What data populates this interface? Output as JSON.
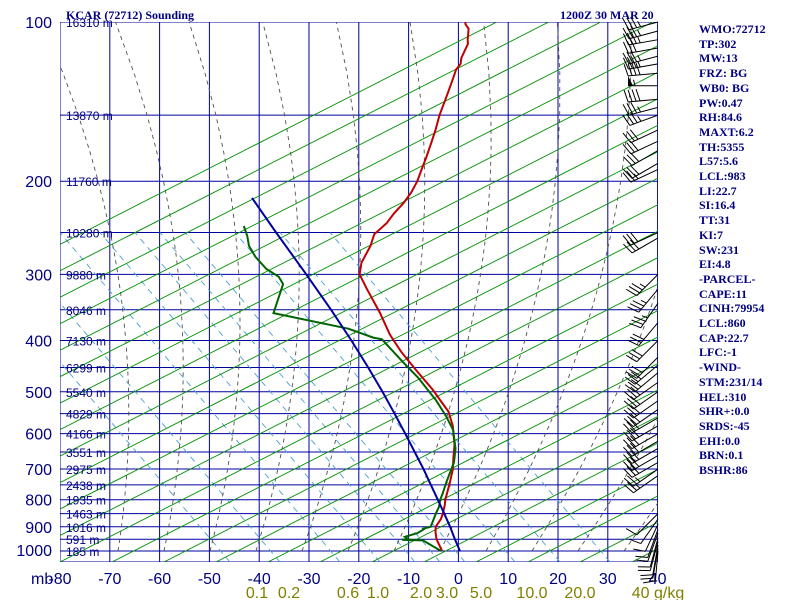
{
  "chart_data": {
    "type": "line",
    "title": "KCAR (72712) Sounding",
    "subtitle": "1200Z 30 MAR 20",
    "xlabel": "",
    "ylabel": "mb",
    "xlim": [
      -80,
      0
    ],
    "ylim": [
      1000,
      100
    ],
    "y_scale": "log",
    "grid": true,
    "pressure_ticks": [
      100,
      200,
      300,
      400,
      500,
      600,
      700,
      800,
      900,
      1000
    ],
    "temp_ticks": [
      -80,
      -70,
      -60,
      -50,
      -40,
      -30,
      -20,
      -10,
      0,
      10,
      20,
      30,
      40
    ],
    "height_labels": [
      {
        "p": 100,
        "label": "16310 m"
      },
      {
        "p": 150,
        "label": "13870 m"
      },
      {
        "p": 200,
        "label": "11760 m"
      },
      {
        "p": 250,
        "label": "10280 m"
      },
      {
        "p": 300,
        "label": "9880 m"
      },
      {
        "p": 350,
        "label": "8046 m"
      },
      {
        "p": 400,
        "label": "7130 m"
      },
      {
        "p": 450,
        "label": "6299 m"
      },
      {
        "p": 500,
        "label": "5540 m"
      },
      {
        "p": 550,
        "label": "4829 m"
      },
      {
        "p": 600,
        "label": "4166 m"
      },
      {
        "p": 650,
        "label": "3551 m"
      },
      {
        "p": 700,
        "label": "2975 m"
      },
      {
        "p": 750,
        "label": "2438 m"
      },
      {
        "p": 800,
        "label": "1935 m"
      },
      {
        "p": 850,
        "label": "1463 m"
      },
      {
        "p": 900,
        "label": "1016 m"
      },
      {
        "p": 950,
        "label": "591 m"
      },
      {
        "p": 1000,
        "label": "185 m"
      }
    ],
    "mixing_ratio_labels": [
      "0.1",
      "0.2",
      "0.6",
      "1.0",
      "2.0",
      "3.0",
      "5.0",
      "10.0",
      "20.0",
      "40 g/kg"
    ],
    "series": [
      {
        "name": "Temperature",
        "color": "#c00000",
        "points": [
          [
            -3.6,
            1000
          ],
          [
            -6,
            950
          ],
          [
            -7,
            920
          ],
          [
            -7.5,
            900
          ],
          [
            -7.3,
            870
          ],
          [
            -7.5,
            850
          ],
          [
            -8,
            820
          ],
          [
            -8.5,
            800
          ],
          [
            -9.3,
            750
          ],
          [
            -10.3,
            700
          ],
          [
            -11.3,
            670
          ],
          [
            -12.6,
            630
          ],
          [
            -15,
            580
          ],
          [
            -17.4,
            545
          ],
          [
            -19.6,
            525
          ],
          [
            -23,
            495
          ],
          [
            -28.4,
            455
          ],
          [
            -33.4,
            420
          ],
          [
            -37.5,
            390
          ],
          [
            -41.8,
            355
          ],
          [
            -47,
            320
          ],
          [
            -50.1,
            300
          ],
          [
            -51,
            285
          ],
          [
            -51,
            265
          ],
          [
            -51.5,
            252
          ],
          [
            -50.2,
            240
          ],
          [
            -49.8,
            230
          ],
          [
            -49,
            220
          ],
          [
            -48.6,
            210
          ],
          [
            -48.6,
            200
          ],
          [
            -49,
            190
          ],
          [
            -49.4,
            180
          ],
          [
            -49.9,
            170
          ],
          [
            -50.5,
            160
          ],
          [
            -51.3,
            150
          ],
          [
            -51.8,
            140
          ],
          [
            -52.4,
            130
          ],
          [
            -52.9,
            123
          ],
          [
            -52.6,
            120
          ],
          [
            -53.1,
            117
          ],
          [
            -53.3,
            110
          ],
          [
            -53.8,
            108
          ],
          [
            -54.8,
            103
          ],
          [
            -55.9,
            101
          ],
          [
            -56.2,
            100
          ]
        ]
      },
      {
        "name": "Dewpoint",
        "color": "#006400",
        "points": [
          [
            -3.8,
            1000
          ],
          [
            -8.6,
            955
          ],
          [
            -12.8,
            953
          ],
          [
            -11.8,
            948
          ],
          [
            -12.6,
            940
          ],
          [
            -10.5,
            925
          ],
          [
            -9.6,
            910
          ],
          [
            -9.8,
            907
          ],
          [
            -8.5,
            900
          ],
          [
            -8.9,
            850
          ],
          [
            -9,
            825
          ],
          [
            -9.5,
            800
          ],
          [
            -9.7,
            780
          ],
          [
            -10.2,
            740
          ],
          [
            -10.8,
            680
          ],
          [
            -12,
            640
          ],
          [
            -14.5,
            590
          ],
          [
            -17.5,
            555
          ],
          [
            -21,
            520
          ],
          [
            -27.2,
            470
          ],
          [
            -31.8,
            440
          ],
          [
            -38.6,
            398
          ],
          [
            -40.5,
            395
          ],
          [
            -46.5,
            380
          ],
          [
            -63.2,
            355
          ],
          [
            -64.4,
            313
          ],
          [
            -66.1,
            303
          ],
          [
            -69.4,
            293
          ],
          [
            -72.9,
            278
          ],
          [
            -75.4,
            265
          ],
          [
            -76.8,
            254
          ],
          [
            -78.6,
            243
          ]
        ]
      },
      {
        "name": "Parcel",
        "color": "#0000a0",
        "points": [
          [
            0,
            1000
          ],
          [
            -2.3,
            950
          ],
          [
            -4.6,
            900
          ],
          [
            -7.2,
            850
          ],
          [
            -10,
            800
          ],
          [
            -13,
            750
          ],
          [
            -16.2,
            700
          ],
          [
            -19.8,
            650
          ],
          [
            -23.7,
            600
          ],
          [
            -28,
            550
          ],
          [
            -32.8,
            500
          ],
          [
            -38.3,
            450
          ],
          [
            -44.6,
            400
          ],
          [
            -52,
            350
          ],
          [
            -60.8,
            300
          ],
          [
            -71.4,
            250
          ],
          [
            -80,
            215
          ]
        ]
      }
    ],
    "wind_barbs": [
      {
        "p": 100,
        "dir": 255,
        "spd": 35
      },
      {
        "p": 104,
        "dir": 255,
        "spd": 35
      },
      {
        "p": 108,
        "dir": 260,
        "spd": 35
      },
      {
        "p": 112,
        "dir": 260,
        "spd": 30
      },
      {
        "p": 116,
        "dir": 255,
        "spd": 35
      },
      {
        "p": 120,
        "dir": 260,
        "spd": 35
      },
      {
        "p": 125,
        "dir": 265,
        "spd": 40
      },
      {
        "p": 132,
        "dir": 270,
        "spd": 55
      },
      {
        "p": 140,
        "dir": 265,
        "spd": 40
      },
      {
        "p": 145,
        "dir": 255,
        "spd": 35
      },
      {
        "p": 150,
        "dir": 250,
        "spd": 35
      },
      {
        "p": 160,
        "dir": 245,
        "spd": 30
      },
      {
        "p": 168,
        "dir": 245,
        "spd": 30
      },
      {
        "p": 175,
        "dir": 240,
        "spd": 30
      },
      {
        "p": 185,
        "dir": 240,
        "spd": 30
      },
      {
        "p": 190,
        "dir": 245,
        "spd": 25
      },
      {
        "p": 250,
        "dir": 245,
        "spd": 30
      },
      {
        "p": 256,
        "dir": 240,
        "spd": 30
      },
      {
        "p": 300,
        "dir": 225,
        "spd": 35
      },
      {
        "p": 320,
        "dir": 220,
        "spd": 35
      },
      {
        "p": 340,
        "dir": 215,
        "spd": 35
      },
      {
        "p": 370,
        "dir": 220,
        "spd": 30
      },
      {
        "p": 400,
        "dir": 225,
        "spd": 30
      },
      {
        "p": 430,
        "dir": 225,
        "spd": 30
      },
      {
        "p": 445,
        "dir": 230,
        "spd": 30
      },
      {
        "p": 460,
        "dir": 230,
        "spd": 30
      },
      {
        "p": 480,
        "dir": 235,
        "spd": 30
      },
      {
        "p": 500,
        "dir": 235,
        "spd": 30
      },
      {
        "p": 520,
        "dir": 235,
        "spd": 30
      },
      {
        "p": 540,
        "dir": 235,
        "spd": 30
      },
      {
        "p": 560,
        "dir": 240,
        "spd": 30
      },
      {
        "p": 580,
        "dir": 240,
        "spd": 30
      },
      {
        "p": 600,
        "dir": 240,
        "spd": 30
      },
      {
        "p": 620,
        "dir": 240,
        "spd": 30
      },
      {
        "p": 640,
        "dir": 240,
        "spd": 30
      },
      {
        "p": 660,
        "dir": 240,
        "spd": 30
      },
      {
        "p": 680,
        "dir": 240,
        "spd": 30
      },
      {
        "p": 700,
        "dir": 235,
        "spd": 25
      },
      {
        "p": 720,
        "dir": 235,
        "spd": 25
      },
      {
        "p": 850,
        "dir": 225,
        "spd": 10
      },
      {
        "p": 870,
        "dir": 215,
        "spd": 10
      },
      {
        "p": 890,
        "dir": 205,
        "spd": 10
      },
      {
        "p": 910,
        "dir": 200,
        "spd": 10
      },
      {
        "p": 925,
        "dir": 200,
        "spd": 10
      },
      {
        "p": 945,
        "dir": 195,
        "spd": 10
      },
      {
        "p": 960,
        "dir": 195,
        "spd": 10
      },
      {
        "p": 975,
        "dir": 190,
        "spd": 10
      },
      {
        "p": 990,
        "dir": 190,
        "spd": 10
      },
      {
        "p": 1000,
        "dir": 185,
        "spd": 10
      }
    ],
    "colors": {
      "isobar": "#0000a0",
      "isotherm": "#0000a0",
      "dry_adiabat": "#009000",
      "moist_adiabat": "#505050",
      "mixing_ratio": "#4aa0d0",
      "text": "#000080",
      "mixing_label": "#808000"
    }
  },
  "indices": [
    "WMO:72712",
    "TP:302",
    "MW:13",
    "FRZ: BG",
    "WB0: BG",
    "PW:0.47",
    "RH:84.6",
    "MAXT:6.2",
    "TH:5355",
    "L57:5.6",
    "LCL:983",
    "LI:22.7",
    "SI:16.4",
    "TT:31",
    "KI:7",
    "SW:231",
    "EI:4.8",
    "-PARCEL-",
    "CAPE:11",
    "CINH:79954",
    "LCL:860",
    "CAP:22.7",
    "LFC:-1",
    "-WIND-",
    "STM:231/14",
    "HEL:310",
    "SHR+:0.0",
    "SRDS:-45",
    "EHI:0.0",
    "BRN:0.1",
    "BSHR:86"
  ]
}
